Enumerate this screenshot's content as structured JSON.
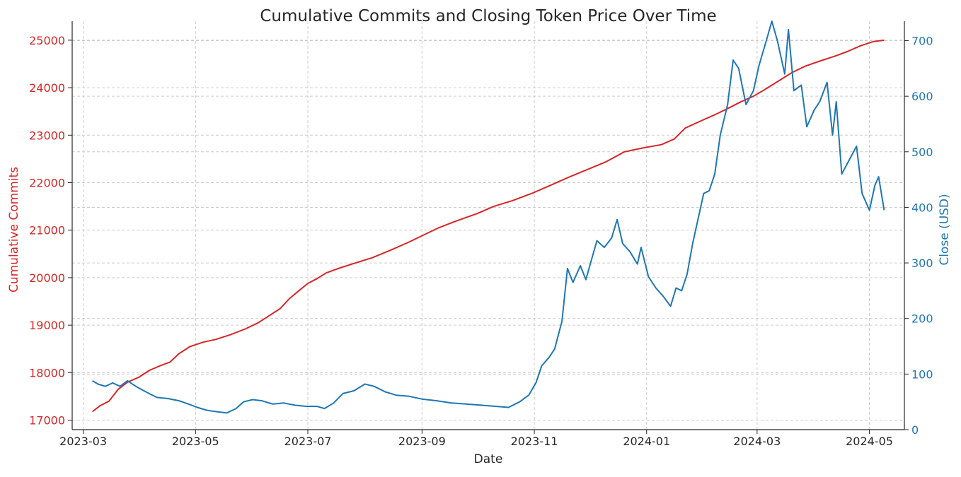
{
  "chart_data": {
    "type": "line",
    "title": "Cumulative Commits and Closing Token Price Over Time",
    "xlabel": "Date",
    "x_ticks": [
      "2023-03",
      "2023-05",
      "2023-07",
      "2023-09",
      "2023-11",
      "2024-01",
      "2024-03",
      "2024-05"
    ],
    "grid": true,
    "colors": {
      "commits": "#d62728",
      "close": "#1f77b4",
      "text": "#262626"
    },
    "left_axis": {
      "label": "Cumulative Commits",
      "ticks": [
        17000,
        18000,
        19000,
        20000,
        21000,
        22000,
        23000,
        24000,
        25000
      ],
      "ylim": [
        16800,
        25400
      ]
    },
    "right_axis": {
      "label": "Close (USD)",
      "ticks": [
        0,
        100,
        200,
        300,
        400,
        500,
        600,
        700
      ],
      "ylim": [
        0,
        735
      ]
    },
    "series": [
      {
        "axis": "left",
        "values": [
          [
            "2023-03-06",
            17180
          ],
          [
            "2023-03-10",
            17300
          ],
          [
            "2023-03-15",
            17400
          ],
          [
            "2023-03-20",
            17650
          ],
          [
            "2023-03-25",
            17800
          ],
          [
            "2023-03-31",
            17900
          ],
          [
            "2023-04-06",
            18050
          ],
          [
            "2023-04-12",
            18150
          ],
          [
            "2023-04-17",
            18220
          ],
          [
            "2023-04-22",
            18400
          ],
          [
            "2023-04-28",
            18550
          ],
          [
            "2023-05-05",
            18640
          ],
          [
            "2023-05-12",
            18700
          ],
          [
            "2023-05-20",
            18800
          ],
          [
            "2023-05-28",
            18920
          ],
          [
            "2023-06-04",
            19050
          ],
          [
            "2023-06-10",
            19200
          ],
          [
            "2023-06-16",
            19350
          ],
          [
            "2023-06-21",
            19560
          ],
          [
            "2023-06-26",
            19720
          ],
          [
            "2023-07-01",
            19880
          ],
          [
            "2023-07-06",
            19980
          ],
          [
            "2023-07-11",
            20100
          ],
          [
            "2023-07-18",
            20200
          ],
          [
            "2023-07-26",
            20300
          ],
          [
            "2023-08-05",
            20420
          ],
          [
            "2023-08-15",
            20580
          ],
          [
            "2023-08-25",
            20750
          ],
          [
            "2023-09-02",
            20900
          ],
          [
            "2023-09-10",
            21050
          ],
          [
            "2023-09-20",
            21200
          ],
          [
            "2023-10-01",
            21350
          ],
          [
            "2023-10-10",
            21500
          ],
          [
            "2023-10-20",
            21620
          ],
          [
            "2023-10-31",
            21780
          ],
          [
            "2023-11-10",
            21950
          ],
          [
            "2023-11-20",
            22120
          ],
          [
            "2023-11-30",
            22280
          ],
          [
            "2023-12-10",
            22440
          ],
          [
            "2023-12-20",
            22650
          ],
          [
            "2023-12-30",
            22730
          ],
          [
            "2024-01-09",
            22800
          ],
          [
            "2024-01-16",
            22920
          ],
          [
            "2024-01-22",
            23150
          ],
          [
            "2024-01-31",
            23310
          ],
          [
            "2024-02-07",
            23430
          ],
          [
            "2024-02-14",
            23560
          ],
          [
            "2024-02-21",
            23700
          ],
          [
            "2024-02-28",
            23820
          ],
          [
            "2024-03-06",
            23980
          ],
          [
            "2024-03-13",
            24150
          ],
          [
            "2024-03-20",
            24320
          ],
          [
            "2024-03-27",
            24450
          ],
          [
            "2024-04-04",
            24560
          ],
          [
            "2024-04-12",
            24660
          ],
          [
            "2024-04-19",
            24760
          ],
          [
            "2024-04-26",
            24880
          ],
          [
            "2024-05-03",
            24970
          ],
          [
            "2024-05-09",
            25000
          ]
        ]
      },
      {
        "axis": "right",
        "values": [
          [
            "2023-03-06",
            88
          ],
          [
            "2023-03-09",
            82
          ],
          [
            "2023-03-13",
            78
          ],
          [
            "2023-03-17",
            84
          ],
          [
            "2023-03-21",
            78
          ],
          [
            "2023-03-25",
            88
          ],
          [
            "2023-03-30",
            77
          ],
          [
            "2023-04-04",
            68
          ],
          [
            "2023-04-10",
            58
          ],
          [
            "2023-04-16",
            56
          ],
          [
            "2023-04-22",
            52
          ],
          [
            "2023-04-28",
            45
          ],
          [
            "2023-05-02",
            40
          ],
          [
            "2023-05-07",
            35
          ],
          [
            "2023-05-13",
            32
          ],
          [
            "2023-05-18",
            30
          ],
          [
            "2023-05-23",
            38
          ],
          [
            "2023-05-27",
            50
          ],
          [
            "2023-06-01",
            54
          ],
          [
            "2023-06-06",
            52
          ],
          [
            "2023-06-12",
            46
          ],
          [
            "2023-06-18",
            48
          ],
          [
            "2023-06-24",
            44
          ],
          [
            "2023-06-30",
            42
          ],
          [
            "2023-07-06",
            42
          ],
          [
            "2023-07-10",
            38
          ],
          [
            "2023-07-15",
            48
          ],
          [
            "2023-07-20",
            65
          ],
          [
            "2023-07-26",
            70
          ],
          [
            "2023-08-01",
            82
          ],
          [
            "2023-08-06",
            78
          ],
          [
            "2023-08-12",
            68
          ],
          [
            "2023-08-18",
            62
          ],
          [
            "2023-08-25",
            60
          ],
          [
            "2023-09-01",
            55
          ],
          [
            "2023-09-09",
            52
          ],
          [
            "2023-09-17",
            48
          ],
          [
            "2023-09-25",
            46
          ],
          [
            "2023-10-03",
            44
          ],
          [
            "2023-10-11",
            42
          ],
          [
            "2023-10-18",
            40
          ],
          [
            "2023-10-24",
            50
          ],
          [
            "2023-10-29",
            62
          ],
          [
            "2023-11-02",
            85
          ],
          [
            "2023-11-05",
            115
          ],
          [
            "2023-11-09",
            130
          ],
          [
            "2023-11-12",
            145
          ],
          [
            "2023-11-16",
            195
          ],
          [
            "2023-11-19",
            290
          ],
          [
            "2023-11-22",
            265
          ],
          [
            "2023-11-26",
            295
          ],
          [
            "2023-11-29",
            270
          ],
          [
            "2023-12-02",
            305
          ],
          [
            "2023-12-05",
            340
          ],
          [
            "2023-12-09",
            328
          ],
          [
            "2023-12-13",
            345
          ],
          [
            "2023-12-16",
            378
          ],
          [
            "2023-12-19",
            335
          ],
          [
            "2023-12-23",
            320
          ],
          [
            "2023-12-27",
            298
          ],
          [
            "2023-12-29",
            328
          ],
          [
            "2024-01-02",
            275
          ],
          [
            "2024-01-06",
            255
          ],
          [
            "2024-01-10",
            240
          ],
          [
            "2024-01-14",
            222
          ],
          [
            "2024-01-17",
            255
          ],
          [
            "2024-01-20",
            250
          ],
          [
            "2024-01-23",
            280
          ],
          [
            "2024-01-26",
            335
          ],
          [
            "2024-01-29",
            380
          ],
          [
            "2024-02-01",
            425
          ],
          [
            "2024-02-04",
            430
          ],
          [
            "2024-02-07",
            460
          ],
          [
            "2024-02-10",
            530
          ],
          [
            "2024-02-14",
            585
          ],
          [
            "2024-02-17",
            665
          ],
          [
            "2024-02-20",
            650
          ],
          [
            "2024-02-24",
            585
          ],
          [
            "2024-02-28",
            610
          ],
          [
            "2024-03-02",
            655
          ],
          [
            "2024-03-06",
            700
          ],
          [
            "2024-03-09",
            735
          ],
          [
            "2024-03-12",
            700
          ],
          [
            "2024-03-16",
            640
          ],
          [
            "2024-03-18",
            720
          ],
          [
            "2024-03-21",
            610
          ],
          [
            "2024-03-25",
            620
          ],
          [
            "2024-03-28",
            545
          ],
          [
            "2024-04-01",
            575
          ],
          [
            "2024-04-04",
            590
          ],
          [
            "2024-04-08",
            625
          ],
          [
            "2024-04-11",
            530
          ],
          [
            "2024-04-13",
            590
          ],
          [
            "2024-04-16",
            460
          ],
          [
            "2024-04-20",
            485
          ],
          [
            "2024-04-24",
            510
          ],
          [
            "2024-04-27",
            425
          ],
          [
            "2024-05-01",
            395
          ],
          [
            "2024-05-04",
            440
          ],
          [
            "2024-05-06",
            455
          ],
          [
            "2024-05-09",
            395
          ]
        ]
      }
    ]
  }
}
